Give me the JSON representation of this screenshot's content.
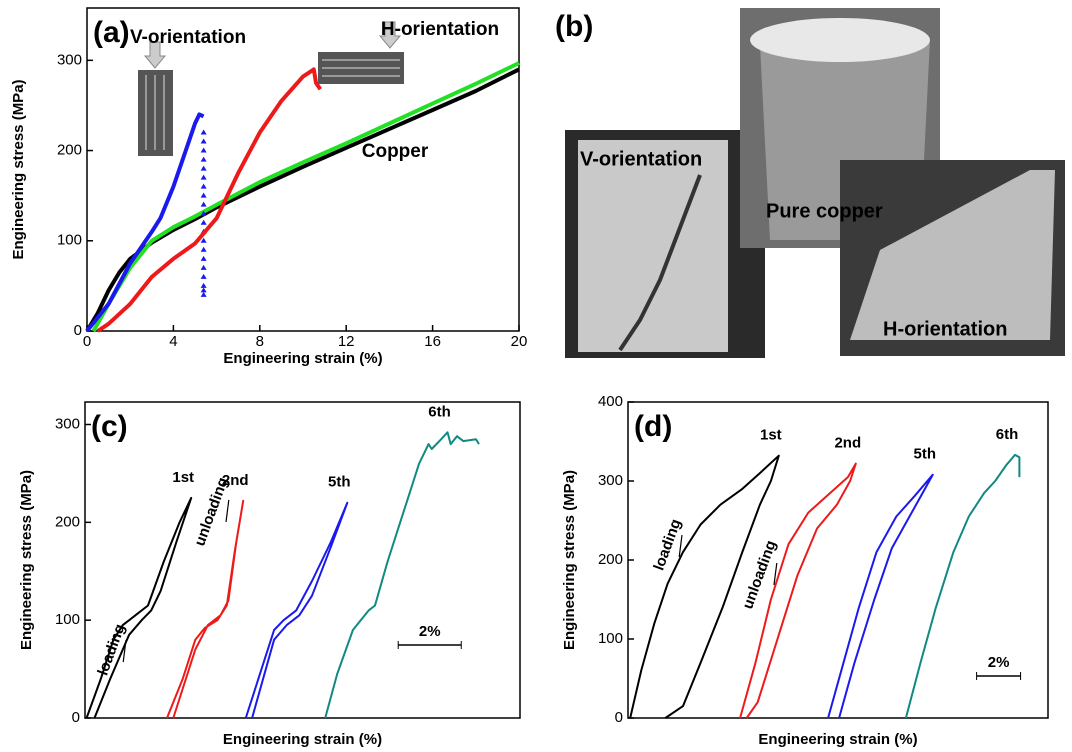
{
  "chart_data": [
    {
      "type": "line",
      "panel": "(a)",
      "xlabel": "Engineering strain (%)",
      "ylabel": "Engineering stress (MPa)",
      "xlim": [
        0,
        20
      ],
      "ylim": [
        0,
        358
      ],
      "xticks": [
        0,
        4,
        8,
        12,
        16,
        20
      ],
      "yticks": [
        0,
        100,
        200,
        300
      ],
      "series": [
        {
          "name": "Copper",
          "color": "#000000",
          "x": [
            0,
            0.5,
            1,
            1.5,
            2,
            3,
            4,
            5,
            6,
            8,
            10,
            12,
            14,
            16,
            18,
            20
          ],
          "values": [
            0,
            20,
            45,
            65,
            80,
            98,
            112,
            124,
            137,
            160,
            182,
            203,
            224,
            245,
            266,
            290
          ]
        },
        {
          "color": "#22e022",
          "x": [
            0.3,
            1,
            2,
            3,
            4,
            5,
            6,
            8,
            10,
            12,
            14,
            16,
            18,
            20
          ],
          "values": [
            0,
            30,
            70,
            100,
            115,
            127,
            140,
            165,
            187,
            208,
            230,
            252,
            274,
            297
          ]
        },
        {
          "name": "V-orientation",
          "color": "#1a1aee",
          "x": [
            0,
            1,
            2,
            3,
            3.4,
            4,
            4.5,
            5,
            5.2,
            5.4
          ],
          "values": [
            0,
            30,
            75,
            110,
            125,
            160,
            195,
            230,
            240,
            238
          ]
        },
        {
          "color": "#1a1aee",
          "marker": "triangle",
          "x": [
            5.4,
            5.4,
            5.4,
            5.4,
            5.4,
            5.4,
            5.4,
            5.4,
            5.4,
            5.4,
            5.4,
            5.4,
            5.4,
            5.4,
            5.4,
            5.4,
            5.4,
            5.4,
            5.4,
            5.4
          ],
          "values": [
            220,
            210,
            200,
            190,
            180,
            170,
            160,
            150,
            140,
            130,
            120,
            110,
            100,
            90,
            80,
            70,
            60,
            50,
            45,
            40
          ]
        },
        {
          "name": "H-orientation",
          "color": "#ee1a1a",
          "x": [
            0.5,
            1,
            2,
            3,
            4,
            5,
            6,
            7,
            8,
            9,
            10,
            10.5,
            10.6,
            10.8
          ],
          "values": [
            0,
            8,
            30,
            60,
            80,
            97,
            125,
            175,
            220,
            255,
            282,
            290,
            275,
            268
          ]
        }
      ]
    },
    {
      "type": "line",
      "panel": "(c)",
      "xlabel": "Engineering strain (%)",
      "ylabel": "Engineering stress (MPa)",
      "xlim": [
        0,
        13.8
      ],
      "ylim": [
        0,
        323
      ],
      "yticks": [
        0,
        100,
        200,
        300
      ],
      "annotations": [
        "loading",
        "unloading"
      ],
      "scale_bar": {
        "label": "2%",
        "length": 2
      },
      "series": [
        {
          "name": "1st",
          "color": "#000000",
          "x": [
            0.05,
            0.5,
            0.9,
            1.2,
            1.6,
            2.0,
            2.5,
            3.0,
            3.37,
            2.9,
            2.4,
            2.1,
            1.8,
            1.4,
            0.8,
            0.3
          ],
          "values": [
            0,
            40,
            80,
            95,
            105,
            115,
            160,
            200,
            225,
            180,
            130,
            110,
            100,
            85,
            40,
            0
          ]
        },
        {
          "name": "2nd",
          "color": "#ee1a1a",
          "x": [
            2.6,
            3.1,
            3.5,
            3.8,
            4.2,
            4.5,
            4.75,
            5.02,
            4.8,
            4.55,
            4.3,
            3.9,
            3.5,
            2.8
          ],
          "values": [
            0,
            40,
            80,
            92,
            100,
            115,
            170,
            222,
            180,
            120,
            105,
            95,
            70,
            0
          ]
        },
        {
          "name": "5th",
          "color": "#1a1aee",
          "x": [
            5.1,
            5.6,
            6.0,
            6.3,
            6.7,
            7.2,
            7.8,
            8.32,
            7.8,
            7.2,
            6.8,
            6.4,
            6.0,
            5.3
          ],
          "values": [
            0,
            50,
            90,
            100,
            110,
            140,
            180,
            220,
            175,
            125,
            105,
            95,
            80,
            0
          ]
        },
        {
          "name": "6th",
          "color": "#108a80",
          "x": [
            7.62,
            8.0,
            8.5,
            9.0,
            9.2,
            9.6,
            10.0,
            10.4,
            10.6,
            10.9,
            11.0,
            11.3,
            11.5,
            11.6,
            11.8,
            12.0,
            12.4,
            12.5
          ],
          "values": [
            0,
            45,
            90,
            110,
            115,
            160,
            200,
            240,
            260,
            280,
            275,
            285,
            292,
            280,
            288,
            283,
            285,
            280
          ]
        }
      ]
    },
    {
      "type": "line",
      "panel": "(d)",
      "xlabel": "Engineering strain (%)",
      "ylabel": "Engineering stress (MPa)",
      "xlim": [
        0,
        19.1
      ],
      "ylim": [
        0,
        400
      ],
      "yticks": [
        0,
        100,
        200,
        300,
        400
      ],
      "annotations": [
        "loading",
        "unloading"
      ],
      "scale_bar": {
        "label": "2%",
        "length": 2
      },
      "series": [
        {
          "name": "1st",
          "color": "#000000",
          "x": [
            0.1,
            0.6,
            1.2,
            1.8,
            2.5,
            3.3,
            4.2,
            5.2,
            6.0,
            6.86,
            6.5,
            6.0,
            5.2,
            4.3,
            3.3,
            2.5,
            1.7
          ],
          "values": [
            0,
            60,
            120,
            170,
            210,
            245,
            270,
            290,
            310,
            332,
            300,
            270,
            210,
            140,
            70,
            15,
            0
          ]
        },
        {
          "name": "2nd",
          "color": "#ee1a1a",
          "x": [
            5.1,
            5.8,
            6.5,
            7.3,
            8.2,
            9.2,
            10.0,
            10.36,
            10.1,
            9.5,
            8.6,
            7.7,
            6.8,
            5.9,
            5.4
          ],
          "values": [
            0,
            70,
            150,
            220,
            260,
            285,
            305,
            322,
            300,
            270,
            240,
            180,
            100,
            20,
            0
          ]
        },
        {
          "name": "5th",
          "color": "#1a1aee",
          "x": [
            9.1,
            9.8,
            10.5,
            11.3,
            12.2,
            13.0,
            13.86,
            13.4,
            12.8,
            12.0,
            11.2,
            10.3,
            9.6
          ],
          "values": [
            0,
            70,
            140,
            210,
            255,
            280,
            308,
            285,
            255,
            215,
            150,
            70,
            0
          ]
        },
        {
          "name": "6th",
          "color": "#108a80",
          "x": [
            12.64,
            13.3,
            14.0,
            14.8,
            15.5,
            16.2,
            16.7,
            17.2,
            17.6,
            17.8,
            17.8
          ],
          "values": [
            0,
            70,
            140,
            210,
            255,
            285,
            300,
            320,
            333,
            330,
            305
          ]
        }
      ]
    }
  ],
  "photos": {
    "panel": "(b)",
    "captions": [
      "V-orientation",
      "Pure copper",
      "H-orientation"
    ]
  }
}
